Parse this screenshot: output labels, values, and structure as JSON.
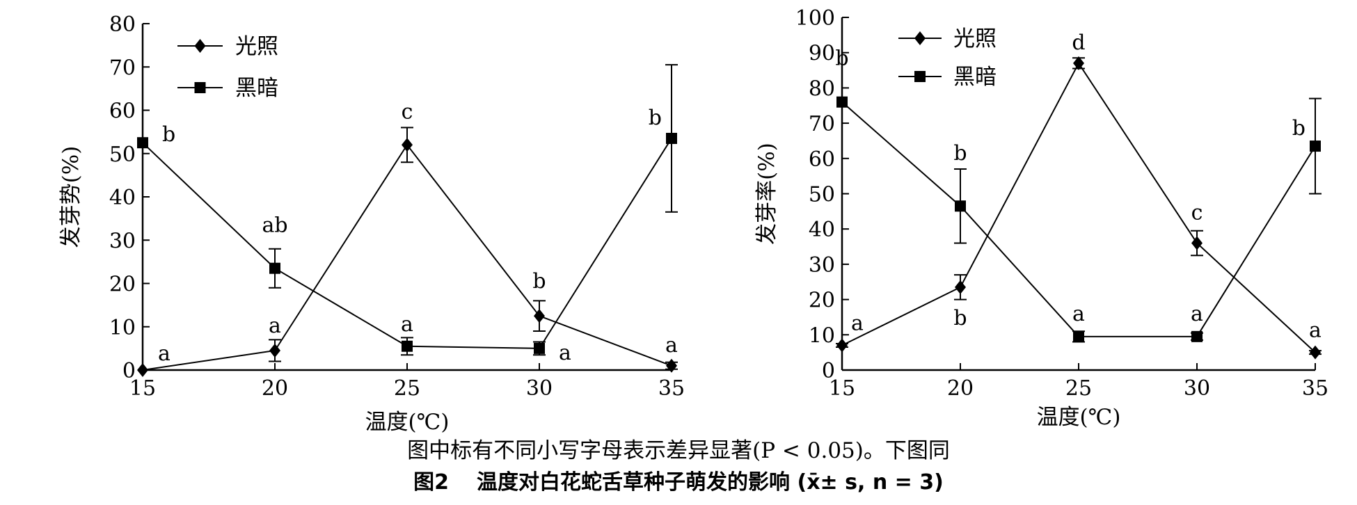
{
  "chart_data": [
    {
      "type": "line",
      "xlabel": "温度(℃)",
      "ylabel": "发芽势(%)",
      "x": [
        15,
        20,
        25,
        30,
        35
      ],
      "xlim": [
        15,
        35
      ],
      "ylim": [
        0,
        80
      ],
      "yticks": [
        0,
        10,
        20,
        30,
        40,
        50,
        60,
        70,
        80
      ],
      "grid": false,
      "legend": "top-left",
      "series": [
        {
          "name": "光照",
          "marker": "diamond",
          "values": [
            0,
            4.5,
            52,
            12.5,
            1
          ],
          "errors": [
            0,
            2.5,
            4,
            3.5,
            0.8
          ],
          "labels": [
            "a",
            "a",
            "c",
            "b",
            "a"
          ]
        },
        {
          "name": "黑暗",
          "marker": "square",
          "values": [
            52.5,
            23.5,
            5.5,
            5,
            53.5
          ],
          "errors": [
            0,
            4.5,
            2,
            1.5,
            17
          ],
          "labels": [
            "b",
            "ab",
            "a",
            "a",
            "b"
          ]
        }
      ]
    },
    {
      "type": "line",
      "xlabel": "温度(℃)",
      "ylabel": "发芽率(%)",
      "x": [
        15,
        20,
        25,
        30,
        35
      ],
      "xlim": [
        15,
        35
      ],
      "ylim": [
        0,
        100
      ],
      "yticks": [
        0,
        10,
        20,
        30,
        40,
        50,
        60,
        70,
        80,
        90,
        100
      ],
      "grid": false,
      "legend": "top-left",
      "series": [
        {
          "name": "光照",
          "marker": "diamond",
          "values": [
            7,
            23.5,
            87,
            36,
            5
          ],
          "errors": [
            0.5,
            3.5,
            1.5,
            3.5,
            0.5
          ],
          "labels": [
            "a",
            "b",
            "d",
            "c",
            "a"
          ]
        },
        {
          "name": "黑暗",
          "marker": "square",
          "values": [
            76,
            46.5,
            9.5,
            9.5,
            63.5
          ],
          "errors": [
            0,
            10.5,
            1.5,
            1,
            13.5
          ],
          "labels": [
            "b",
            "b",
            "a",
            "a",
            "b"
          ]
        }
      ]
    }
  ],
  "caption": {
    "note": "图中标有不同小写字母表示差异显著(P < 0.05)。下图同",
    "figure_number": "图2",
    "title": "温度对白花蛇舌草种子萌发的影响 (x̄± s,  n = 3)"
  }
}
